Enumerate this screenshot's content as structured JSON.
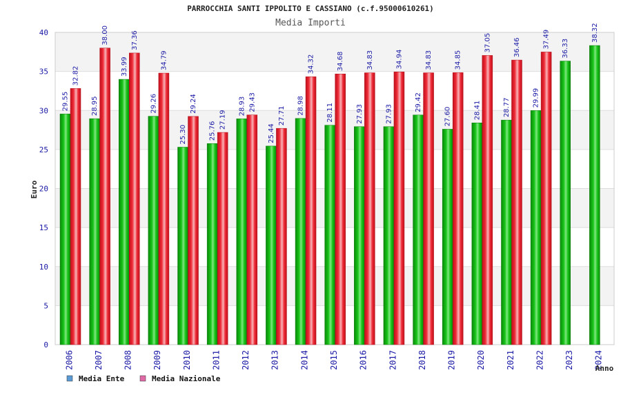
{
  "chart_data": {
    "type": "bar",
    "title": "PARROCCHIA SANTI IPPOLITO E CASSIANO (c.f.95000610261)",
    "subtitle": "Media Importi",
    "ylabel": "Euro",
    "xlabel": "Anno",
    "ylim": [
      0,
      40
    ],
    "yticks": [
      0,
      5,
      10,
      15,
      20,
      25,
      30,
      35,
      40
    ],
    "ytick_labels": [
      "0",
      "5",
      "10",
      "15",
      "20",
      "25",
      "30",
      "35",
      "40"
    ],
    "categories": [
      "2006",
      "2007",
      "2008",
      "2009",
      "2010",
      "2011",
      "2012",
      "2013",
      "2014",
      "2015",
      "2016",
      "2017",
      "2018",
      "2019",
      "2020",
      "2021",
      "2022",
      "2023",
      "2024"
    ],
    "series": [
      {
        "name": "Media Ente",
        "color": "#13b313",
        "values": [
          29.55,
          28.95,
          33.99,
          29.26,
          25.3,
          25.76,
          28.93,
          25.44,
          28.98,
          28.11,
          27.93,
          27.93,
          29.42,
          27.6,
          28.41,
          28.77,
          29.99,
          36.33,
          38.32
        ],
        "labels": [
          "29.55",
          "28.95",
          "33.99",
          "29.26",
          "25.30",
          "25.76",
          "28.93",
          "25.44",
          "28.98",
          "28.11",
          "27.93",
          "27.93",
          "29.42",
          "27.60",
          "28.41",
          "28.77",
          "29.99",
          "36.33",
          "38.32"
        ]
      },
      {
        "name": "Media Nazionale",
        "color": "#e8222e",
        "values": [
          32.82,
          38.0,
          37.36,
          34.79,
          29.24,
          27.19,
          29.43,
          27.71,
          34.32,
          34.68,
          34.83,
          34.94,
          34.83,
          34.85,
          37.05,
          36.46,
          37.49,
          null,
          null
        ],
        "labels": [
          "32.82",
          "38.00",
          "37.36",
          "34.79",
          "29.24",
          "27.19",
          "29.43",
          "27.71",
          "34.32",
          "34.68",
          "34.83",
          "34.94",
          "34.83",
          "34.85",
          "37.05",
          "36.46",
          "37.49",
          null,
          null
        ]
      }
    ],
    "legend": {
      "placement": "bottom-left",
      "items": [
        {
          "label": "Media Ente",
          "color": "#5b9bd5"
        },
        {
          "label": "Media Nazionale",
          "color": "#e06aa6"
        }
      ]
    },
    "grid": true
  }
}
